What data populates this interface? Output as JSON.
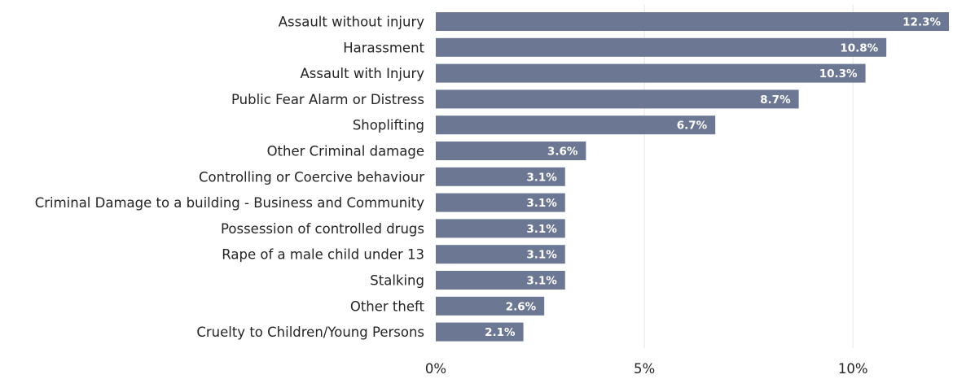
{
  "chart_data": {
    "type": "bar",
    "orientation": "horizontal",
    "title": "",
    "xlabel": "",
    "ylabel": "",
    "categories": [
      "Assault without injury",
      "Harassment",
      "Assault with Injury",
      "Public Fear Alarm or Distress",
      "Shoplifting",
      "Other Criminal damage",
      "Controlling or Coercive behaviour",
      "Criminal Damage to a building - Business and Community",
      "Possession of controlled drugs",
      "Rape of a male child under 13",
      "Stalking",
      "Other theft",
      "Cruelty to Children/Young Persons"
    ],
    "values": [
      12.3,
      10.8,
      10.3,
      8.7,
      6.7,
      3.6,
      3.1,
      3.1,
      3.1,
      3.1,
      3.1,
      2.6,
      2.1
    ],
    "data_labels": [
      "12.3%",
      "10.8%",
      "10.3%",
      "8.7%",
      "6.7%",
      "3.6%",
      "3.1%",
      "3.1%",
      "3.1%",
      "3.1%",
      "3.1%",
      "2.6%",
      "2.1%"
    ],
    "xlim": [
      0,
      12.3
    ],
    "x_ticks": [
      0,
      5,
      10
    ],
    "x_tick_labels": [
      "0%",
      "5%",
      "10%"
    ],
    "grid": true,
    "legend": "none",
    "bar_color": "#6b7793",
    "grid_color": "#e6e6e6"
  }
}
